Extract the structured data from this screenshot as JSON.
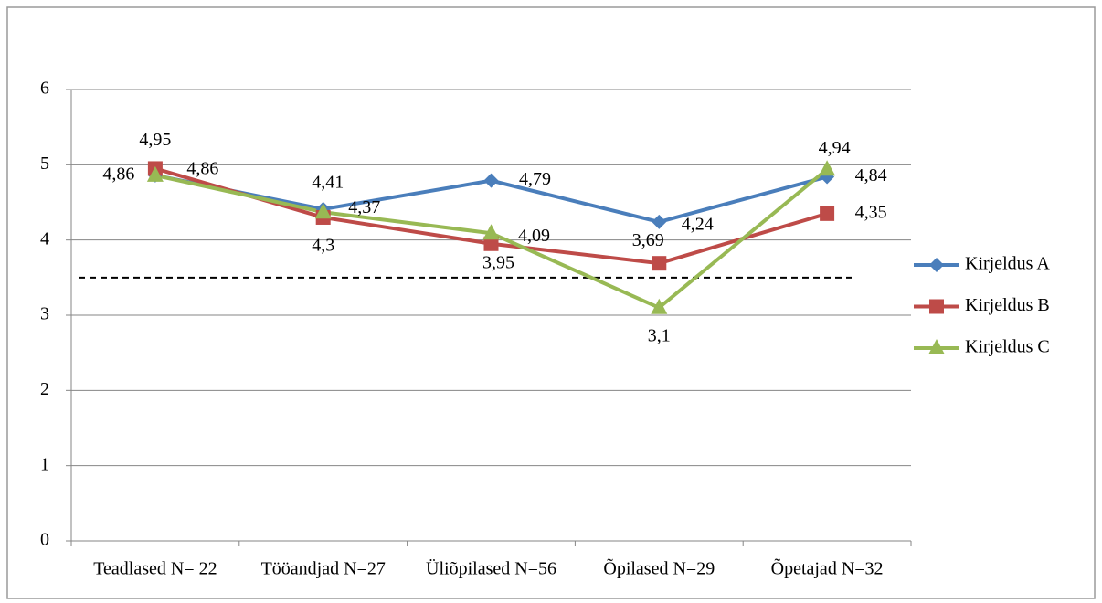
{
  "chart_data": {
    "type": "line",
    "categories": [
      "Teadlased N= 22",
      "Tööandjad N=27",
      "Üliõpilased N=56",
      "Õpilased N=29",
      "Õpetajad N=32"
    ],
    "series": [
      {
        "name": "Kirjeldus A",
        "color": "#4a7ebb",
        "marker": "diamond",
        "values": [
          4.86,
          4.41,
          4.79,
          4.24,
          4.84
        ],
        "value_labels": [
          "4,86",
          "4,41",
          "4,79",
          "4,24",
          "4,84"
        ]
      },
      {
        "name": "Kirjeldus B",
        "color": "#be4b48",
        "marker": "square",
        "values": [
          4.95,
          4.3,
          3.95,
          3.69,
          4.35
        ],
        "value_labels": [
          "4,95",
          "4,3",
          "3,95",
          "3,69",
          "4,35"
        ]
      },
      {
        "name": "Kirjeldus C",
        "color": "#98b954",
        "marker": "triangle",
        "values": [
          4.86,
          4.37,
          4.09,
          3.1,
          4.94
        ],
        "value_labels": [
          "4,86",
          "4,37",
          "4,09",
          "3,1",
          "4,94"
        ]
      }
    ],
    "reference_line": 3.5,
    "ylim": [
      0,
      6
    ],
    "yticks": [
      0,
      1,
      2,
      3,
      4,
      5,
      6
    ],
    "grid": true,
    "legend": "right"
  }
}
